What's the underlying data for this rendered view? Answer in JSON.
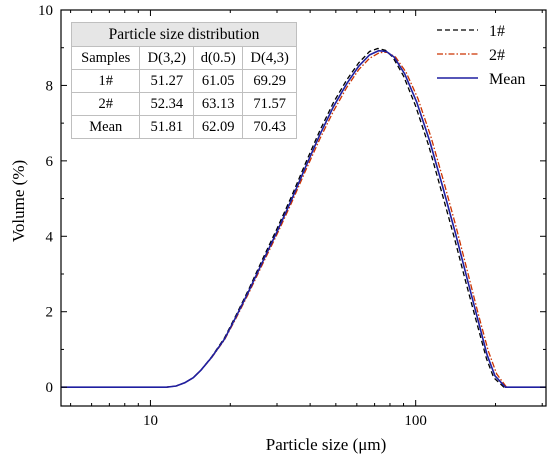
{
  "chart_data": {
    "type": "line",
    "xlabel": "Particle size (μm)",
    "ylabel": "Volume (%)",
    "xscale": "log",
    "xlim": [
      4.6,
      310
    ],
    "ylim": [
      -0.5,
      10
    ],
    "x_ticks": [
      10,
      100
    ],
    "y_ticks": [
      0,
      2,
      4,
      6,
      8,
      10
    ],
    "grid": false,
    "legend_position": "top-right",
    "series": [
      {
        "name": "1#",
        "color": "#000000",
        "style": "dashed",
        "points": [
          [
            4.6,
            0
          ],
          [
            11.5,
            0
          ],
          [
            12.5,
            0.03
          ],
          [
            13.5,
            0.12
          ],
          [
            14.5,
            0.25
          ],
          [
            15.5,
            0.45
          ],
          [
            17,
            0.8
          ],
          [
            19,
            1.3
          ],
          [
            21,
            1.9
          ],
          [
            23.5,
            2.6
          ],
          [
            26.5,
            3.4
          ],
          [
            30,
            4.2
          ],
          [
            34,
            5.05
          ],
          [
            38.5,
            5.95
          ],
          [
            43.5,
            6.8
          ],
          [
            49,
            7.55
          ],
          [
            55,
            8.15
          ],
          [
            61,
            8.6
          ],
          [
            67,
            8.9
          ],
          [
            72,
            8.98
          ],
          [
            77,
            8.93
          ],
          [
            82,
            8.75
          ],
          [
            90,
            8.25
          ],
          [
            100,
            7.45
          ],
          [
            112,
            6.4
          ],
          [
            125,
            5.2
          ],
          [
            140,
            3.95
          ],
          [
            155,
            2.75
          ],
          [
            170,
            1.7
          ],
          [
            185,
            0.75
          ],
          [
            197,
            0.25
          ],
          [
            215,
            0
          ],
          [
            310,
            0
          ]
        ]
      },
      {
        "name": "2#",
        "color": "#cc3300",
        "style": "dash-dot",
        "points": [
          [
            4.6,
            0
          ],
          [
            11.5,
            0
          ],
          [
            12.5,
            0.03
          ],
          [
            13.5,
            0.12
          ],
          [
            14.5,
            0.25
          ],
          [
            15.5,
            0.45
          ],
          [
            17,
            0.78
          ],
          [
            19,
            1.25
          ],
          [
            21,
            1.82
          ],
          [
            23.5,
            2.5
          ],
          [
            26.5,
            3.27
          ],
          [
            30,
            4.05
          ],
          [
            34,
            4.88
          ],
          [
            38.5,
            5.75
          ],
          [
            43.5,
            6.58
          ],
          [
            49,
            7.32
          ],
          [
            55,
            7.95
          ],
          [
            61,
            8.42
          ],
          [
            67,
            8.72
          ],
          [
            73,
            8.87
          ],
          [
            78,
            8.88
          ],
          [
            84,
            8.75
          ],
          [
            92,
            8.35
          ],
          [
            102,
            7.65
          ],
          [
            114,
            6.65
          ],
          [
            127,
            5.5
          ],
          [
            142,
            4.25
          ],
          [
            157,
            3.05
          ],
          [
            172,
            1.95
          ],
          [
            188,
            0.95
          ],
          [
            202,
            0.35
          ],
          [
            220,
            0
          ],
          [
            310,
            0
          ]
        ]
      },
      {
        "name": "Mean",
        "color": "#1f1fa0",
        "style": "solid",
        "points": [
          [
            4.6,
            0
          ],
          [
            11.5,
            0
          ],
          [
            12.5,
            0.03
          ],
          [
            13.5,
            0.12
          ],
          [
            14.5,
            0.25
          ],
          [
            15.5,
            0.45
          ],
          [
            17,
            0.79
          ],
          [
            19,
            1.27
          ],
          [
            21,
            1.86
          ],
          [
            23.5,
            2.55
          ],
          [
            26.5,
            3.33
          ],
          [
            30,
            4.12
          ],
          [
            34,
            4.96
          ],
          [
            38.5,
            5.85
          ],
          [
            43.5,
            6.69
          ],
          [
            49,
            7.44
          ],
          [
            55,
            8.05
          ],
          [
            61,
            8.51
          ],
          [
            67,
            8.81
          ],
          [
            72.5,
            8.92
          ],
          [
            77.5,
            8.9
          ],
          [
            83,
            8.75
          ],
          [
            91,
            8.3
          ],
          [
            101,
            7.55
          ],
          [
            113,
            6.52
          ],
          [
            126,
            5.35
          ],
          [
            141,
            4.1
          ],
          [
            156,
            2.9
          ],
          [
            171,
            1.83
          ],
          [
            186,
            0.85
          ],
          [
            199,
            0.3
          ],
          [
            218,
            0
          ],
          [
            310,
            0
          ]
        ]
      }
    ]
  },
  "table": {
    "title": "Particle size distribution",
    "headers": [
      "Samples",
      "D(3,2)",
      "d(0.5)",
      "D(4,3)"
    ],
    "rows": [
      [
        "1#",
        "51.27",
        "61.05",
        "69.29"
      ],
      [
        "2#",
        "52.34",
        "63.13",
        "71.57"
      ],
      [
        "Mean",
        "51.81",
        "62.09",
        "70.43"
      ]
    ]
  }
}
